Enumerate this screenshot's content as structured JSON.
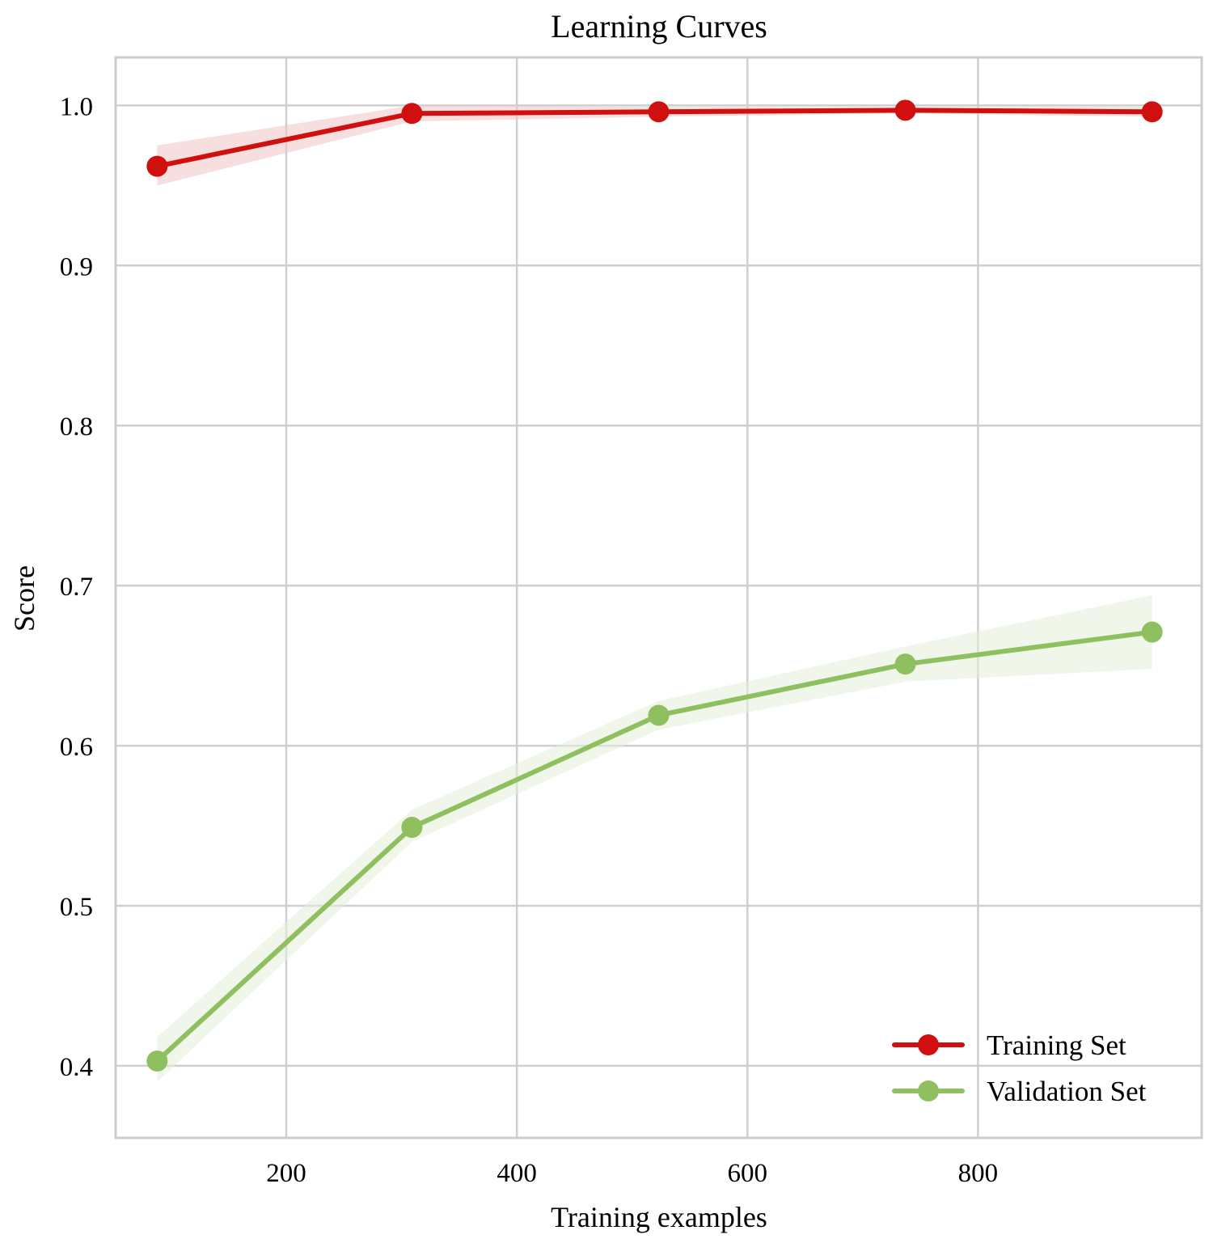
{
  "chart_data": {
    "type": "line",
    "title": "Learning Curves",
    "xlabel": "Training examples",
    "ylabel": "Score",
    "xlim": [
      52,
      994
    ],
    "ylim": [
      0.355,
      1.03
    ],
    "xticks": [
      200,
      400,
      600,
      800
    ],
    "xtick_labels": [
      "200",
      "400",
      "600",
      "800"
    ],
    "yticks": [
      0.4,
      0.5,
      0.6,
      0.7,
      0.8,
      0.9,
      1.0
    ],
    "ytick_labels": [
      "0.4",
      "0.5",
      "0.6",
      "0.7",
      "0.8",
      "0.9",
      "1.0"
    ],
    "grid": true,
    "legend_position": "lower right",
    "x": [
      88,
      309,
      523,
      737,
      951
    ],
    "series": [
      {
        "name": "Training Set",
        "color": "#d00f0f",
        "band_color": "#f2c4c4",
        "values": [
          0.962,
          0.995,
          0.996,
          0.997,
          0.996
        ],
        "band_lower": [
          0.95,
          0.99,
          0.993,
          0.995,
          0.993
        ],
        "band_upper": [
          0.975,
          1.0,
          0.999,
          0.999,
          0.999
        ]
      },
      {
        "name": "Validation Set",
        "color": "#8fc060",
        "band_color": "#e4efd8",
        "values": [
          0.403,
          0.549,
          0.619,
          0.651,
          0.671
        ],
        "band_lower": [
          0.39,
          0.54,
          0.61,
          0.64,
          0.648
        ],
        "band_upper": [
          0.418,
          0.56,
          0.628,
          0.662,
          0.694
        ]
      }
    ]
  },
  "colors": {
    "grid": "#cfcfcf",
    "frame": "#cccccc",
    "text": "#1a1a1a"
  }
}
